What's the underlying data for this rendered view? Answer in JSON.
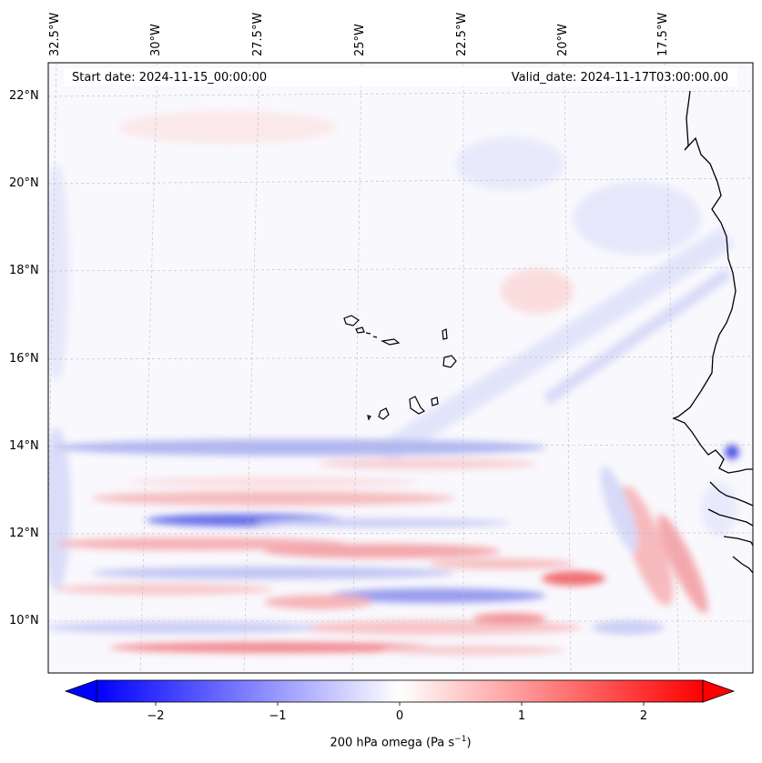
{
  "header": {
    "start_label": "Start date: 2024-11-15_00:00:00",
    "valid_label": "Valid_date: 2024-11-17T03:00:00.00"
  },
  "axes": {
    "lon_labels": [
      "32.5°W",
      "30°W",
      "27.5°W",
      "25°W",
      "22.5°W",
      "20°W",
      "17.5°W"
    ],
    "lat_labels": [
      "22°N",
      "20°N",
      "18°N",
      "16°N",
      "14°N",
      "12°N",
      "10°N"
    ]
  },
  "colorbar": {
    "ticks": [
      "−2",
      "−1",
      "0",
      "1",
      "2"
    ],
    "label": "200 hPa omega (Pa s",
    "label_sup": "−1",
    "label_end": ")",
    "min": -2.5,
    "max": 2.5,
    "colors": {
      "negative": "#0000ff",
      "zero": "#ffffff",
      "positive": "#ff0000"
    }
  },
  "map": {
    "features": [
      "coastline-west-africa",
      "cape-verde-islands"
    ],
    "coast_color": "#000000",
    "grid": "dashed-gray"
  }
}
